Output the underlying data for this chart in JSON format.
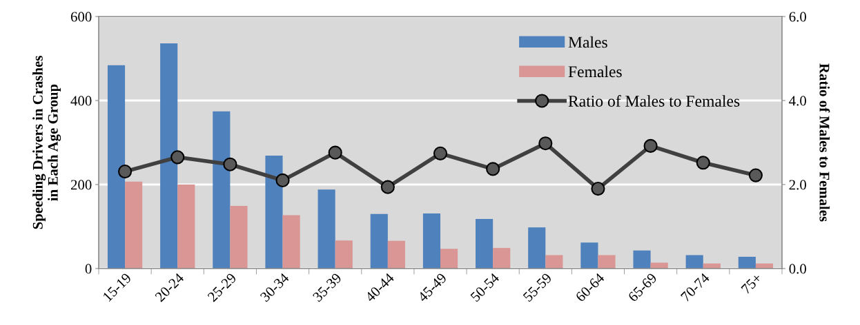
{
  "chart_data": {
    "type": "bar",
    "ylabel": "Speeding Drivers in Crashes\nin Each Age Group",
    "y2label": "Ratio of Males to Females",
    "categories": [
      "15-19",
      "20-24",
      "25-29",
      "30-34",
      "35-39",
      "40-44",
      "45-49",
      "50-54",
      "55-59",
      "60-64",
      "65-69",
      "70-74",
      "75+"
    ],
    "series": [
      {
        "name": "Males",
        "color": "#4f81bd",
        "values": [
          484,
          536,
          374,
          269,
          188,
          130,
          131,
          118,
          98,
          62,
          43,
          32,
          28
        ]
      },
      {
        "name": "Females",
        "color": "#da9694",
        "values": [
          207,
          200,
          149,
          127,
          67,
          66,
          47,
          49,
          32,
          32,
          14,
          12,
          12
        ]
      },
      {
        "name": "Ratio of Males to Females",
        "type": "line",
        "axis": "y2",
        "color": "#404040",
        "marker": "circle",
        "values": [
          2.31,
          2.65,
          2.48,
          2.1,
          2.76,
          1.94,
          2.74,
          2.37,
          2.98,
          1.9,
          2.92,
          2.52,
          2.22
        ]
      }
    ],
    "ylim": [
      0,
      600
    ],
    "yticks": [
      0,
      200,
      400,
      600
    ],
    "y2lim": [
      0,
      6
    ],
    "y2ticks": [
      {
        "value": 0,
        "label": "0.0"
      },
      {
        "value": 2,
        "label": "2.0"
      },
      {
        "value": 4,
        "label": "4.0"
      },
      {
        "value": 6,
        "label": "6.0"
      }
    ],
    "grid": "y",
    "legend": "top right"
  }
}
